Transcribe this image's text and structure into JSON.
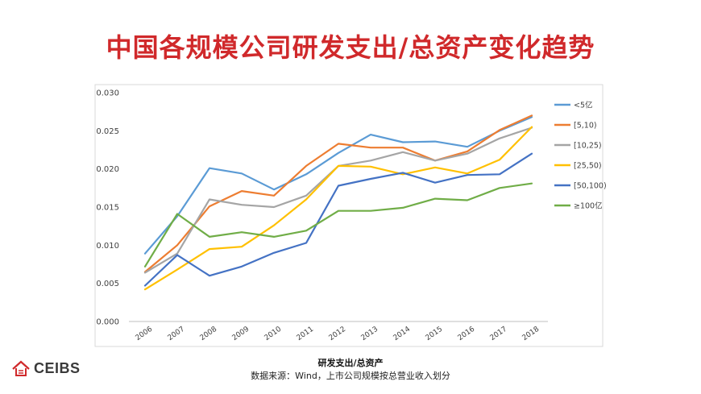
{
  "page": {
    "title": "中国各规模公司研发支出/总资产变化趋势",
    "source_note": "数据来源：Wind，上市公司规模按总营业收入划分",
    "logo_text": "CEIBS",
    "title_color": "#d0292b"
  },
  "chart_data": {
    "type": "line",
    "title": "",
    "xlabel": "研发支出/总资产",
    "ylabel": "",
    "x": [
      "2006",
      "2007",
      "2008",
      "2009",
      "2010",
      "2011",
      "2012",
      "2013",
      "2014",
      "2015",
      "2016",
      "2017",
      "2018"
    ],
    "ylim": [
      0,
      0.03
    ],
    "yticks": [
      "0.000",
      "0.005",
      "0.010",
      "0.015",
      "0.020",
      "0.025",
      "0.030"
    ],
    "grid": false,
    "legend_position": "right",
    "series": [
      {
        "name": "<5亿",
        "color": "#5b9bd5",
        "values": [
          0.0089,
          0.0138,
          0.0201,
          0.0194,
          0.0173,
          0.0193,
          0.0221,
          0.0245,
          0.0235,
          0.0236,
          0.0229,
          0.025,
          0.0268
        ]
      },
      {
        "name": "[5,10)",
        "color": "#ed7d31",
        "values": [
          0.0065,
          0.01,
          0.0151,
          0.0171,
          0.0165,
          0.0204,
          0.0233,
          0.0228,
          0.0228,
          0.0211,
          0.0223,
          0.0251,
          0.027
        ]
      },
      {
        "name": "[10,25)",
        "color": "#a5a5a5",
        "values": [
          0.0064,
          0.0089,
          0.016,
          0.0153,
          0.015,
          0.0165,
          0.0204,
          0.0211,
          0.0222,
          0.0211,
          0.022,
          0.024,
          0.0254
        ]
      },
      {
        "name": "[25,50)",
        "color": "#ffc000",
        "values": [
          0.0042,
          0.0068,
          0.0095,
          0.0098,
          0.0126,
          0.016,
          0.0204,
          0.0203,
          0.0193,
          0.0202,
          0.0194,
          0.0212,
          0.0255
        ]
      },
      {
        "name": "[50,100)",
        "color": "#4472c4",
        "values": [
          0.0047,
          0.0087,
          0.006,
          0.0072,
          0.009,
          0.0103,
          0.0178,
          0.0187,
          0.0195,
          0.0182,
          0.0192,
          0.0193,
          0.022
        ]
      },
      {
        "name": "≥100亿",
        "color": "#70ad47",
        "values": [
          0.0072,
          0.0141,
          0.0111,
          0.0117,
          0.0111,
          0.0119,
          0.0145,
          0.0145,
          0.0149,
          0.0161,
          0.0159,
          0.0175,
          0.0181
        ]
      }
    ]
  }
}
